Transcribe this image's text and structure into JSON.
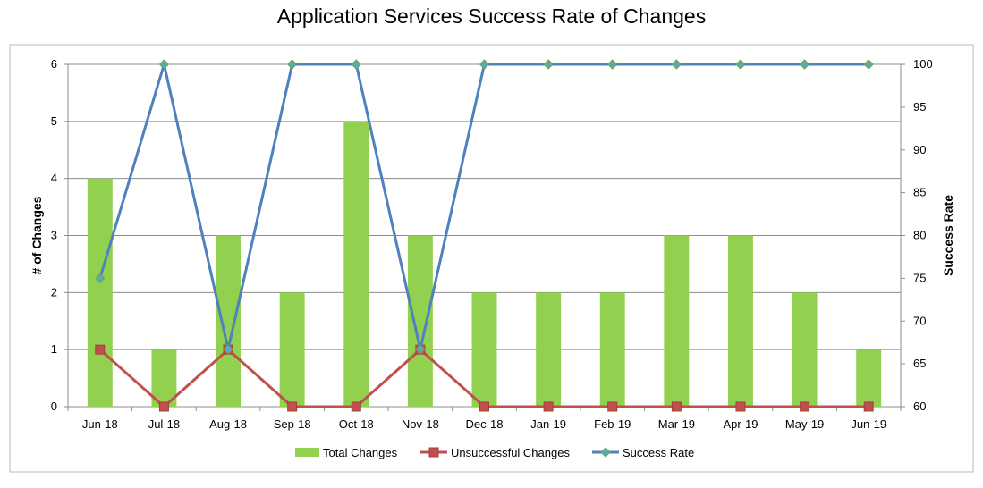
{
  "chart_data": {
    "type": "bar",
    "title": "Application Services Success Rate of Changes",
    "categories": [
      "Jun-18",
      "Jul-18",
      "Aug-18",
      "Sep-18",
      "Oct-18",
      "Nov-18",
      "Dec-18",
      "Jan-19",
      "Feb-19",
      "Mar-19",
      "Apr-19",
      "May-19",
      "Jun-19"
    ],
    "y_left": {
      "label": "# of Changes",
      "lim": [
        0,
        6
      ],
      "ticks": [
        0,
        1,
        2,
        3,
        4,
        5,
        6
      ]
    },
    "y_right": {
      "label": "Success Rate",
      "lim": [
        60,
        100
      ],
      "ticks": [
        60,
        65,
        70,
        75,
        80,
        85,
        90,
        95,
        100
      ]
    },
    "grid": true,
    "legend_position": "bottom",
    "series": [
      {
        "name": "Total Changes",
        "type": "bar",
        "axis": "left",
        "color": "#92d050",
        "values": [
          4,
          1,
          3,
          2,
          5,
          3,
          2,
          2,
          2,
          3,
          3,
          2,
          1
        ]
      },
      {
        "name": "Unsuccessful Changes",
        "type": "line",
        "axis": "left",
        "color": "#c0504d",
        "marker": "square",
        "values": [
          1,
          0,
          1,
          0,
          0,
          1,
          0,
          0,
          0,
          0,
          0,
          0,
          0
        ]
      },
      {
        "name": "Success Rate",
        "type": "line",
        "axis": "right",
        "color": "#4f81bd",
        "marker": "diamond",
        "values": [
          75,
          100,
          66.7,
          100,
          100,
          66.7,
          100,
          100,
          100,
          100,
          100,
          100,
          100
        ]
      }
    ]
  }
}
